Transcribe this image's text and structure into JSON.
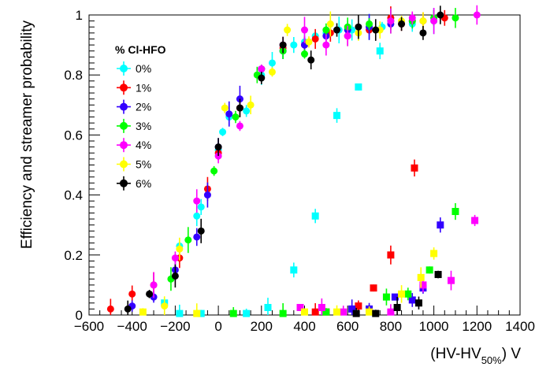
{
  "chart_data": {
    "type": "scatter",
    "xlabel": "(HV-HV",
    "xlabel_sub": "50%",
    "xlabel_unit": ") V",
    "ylabel": "Efficiency and streamer probability",
    "xlim": [
      -600,
      1400
    ],
    "ylim": [
      0,
      1.0
    ],
    "x_ticks": [
      "−600",
      "−400",
      "−200",
      "0",
      "200",
      "400",
      "600",
      "800",
      "1000",
      "1200",
      "1400"
    ],
    "y_ticks": [
      "0",
      "0.2",
      "0.4",
      "0.6",
      "0.8",
      "1"
    ],
    "legend_title": "% Cl-HFO",
    "legend_position": "top-left",
    "series": [
      {
        "name": "0%",
        "color": "#00ffff",
        "efficiency": [
          [
            -180,
            0.23
          ],
          [
            -100,
            0.33
          ],
          [
            -80,
            0.36
          ],
          [
            0,
            0.55
          ],
          [
            20,
            0.61
          ],
          [
            50,
            0.66
          ],
          [
            130,
            0.68
          ],
          [
            200,
            0.8
          ],
          [
            250,
            0.84
          ],
          [
            300,
            0.88
          ],
          [
            350,
            0.9
          ],
          [
            400,
            0.91
          ],
          [
            450,
            0.93
          ],
          [
            500,
            0.94
          ],
          [
            560,
            0.95
          ],
          [
            620,
            0.95
          ],
          [
            700,
            0.96
          ],
          [
            760,
            0.96
          ],
          [
            900,
            0.97
          ],
          [
            1000,
            0.98
          ]
        ],
        "streamer": [
          [
            -250,
            0.04
          ],
          [
            -180,
            0.005
          ],
          [
            -80,
            0.005
          ],
          [
            130,
            0.005
          ],
          [
            230,
            0.025
          ],
          [
            350,
            0.15
          ],
          [
            450,
            0.33
          ],
          [
            550,
            0.665
          ],
          [
            650,
            0.76
          ],
          [
            750,
            0.88
          ]
        ]
      },
      {
        "name": "1%",
        "color": "#ff0000",
        "efficiency": [
          [
            -500,
            0.02
          ],
          [
            -400,
            0.07
          ],
          [
            -300,
            0.1
          ],
          [
            -180,
            0.19
          ],
          [
            -50,
            0.42
          ],
          [
            0,
            0.54
          ],
          [
            100,
            0.69
          ],
          [
            200,
            0.82
          ],
          [
            300,
            0.89
          ],
          [
            400,
            0.9
          ],
          [
            450,
            0.92
          ],
          [
            520,
            0.94
          ],
          [
            600,
            0.93
          ],
          [
            700,
            0.95
          ],
          [
            800,
            0.99
          ],
          [
            850,
            0.97
          ],
          [
            950,
            0.98
          ],
          [
            1050,
            0.99
          ]
        ],
        "streamer": [
          [
            450,
            0.01
          ],
          [
            500,
            0.01
          ],
          [
            650,
            0.03
          ],
          [
            720,
            0.09
          ],
          [
            800,
            0.2
          ],
          [
            910,
            0.49
          ]
        ]
      },
      {
        "name": "2%",
        "color": "#3300ff",
        "efficiency": [
          [
            -400,
            0.03
          ],
          [
            -300,
            0.06
          ],
          [
            -200,
            0.15
          ],
          [
            -100,
            0.26
          ],
          [
            -50,
            0.4
          ],
          [
            0,
            0.56
          ],
          [
            50,
            0.67
          ],
          [
            100,
            0.72
          ],
          [
            200,
            0.82
          ],
          [
            300,
            0.88
          ],
          [
            400,
            0.9
          ],
          [
            500,
            0.93
          ],
          [
            600,
            0.95
          ],
          [
            700,
            0.96
          ],
          [
            800,
            0.97
          ],
          [
            900,
            0.98
          ],
          [
            1000,
            0.99
          ]
        ],
        "streamer": [
          [
            620,
            0.02
          ],
          [
            700,
            0.02
          ],
          [
            820,
            0.06
          ],
          [
            900,
            0.05
          ],
          [
            950,
            0.09
          ],
          [
            1030,
            0.3
          ]
        ]
      },
      {
        "name": "3%",
        "color": "#00ff00",
        "efficiency": [
          [
            -220,
            0.12
          ],
          [
            -140,
            0.25
          ],
          [
            -20,
            0.48
          ],
          [
            80,
            0.66
          ],
          [
            180,
            0.8
          ],
          [
            300,
            0.88
          ],
          [
            400,
            0.87
          ],
          [
            500,
            0.95
          ],
          [
            600,
            0.96
          ],
          [
            700,
            0.97
          ],
          [
            800,
            0.98
          ],
          [
            900,
            0.98
          ],
          [
            1000,
            0.99
          ],
          [
            1100,
            0.99
          ]
        ],
        "streamer": [
          [
            70,
            0.005
          ],
          [
            300,
            0.005
          ],
          [
            500,
            0.01
          ],
          [
            780,
            0.06
          ],
          [
            880,
            0.07
          ],
          [
            980,
            0.15
          ],
          [
            1100,
            0.345
          ]
        ]
      },
      {
        "name": "4%",
        "color": "#ff00ff",
        "efficiency": [
          [
            -300,
            0.1
          ],
          [
            -200,
            0.19
          ],
          [
            -100,
            0.38
          ],
          [
            0,
            0.53
          ],
          [
            100,
            0.63
          ],
          [
            200,
            0.82
          ],
          [
            300,
            0.9
          ],
          [
            400,
            0.95
          ],
          [
            500,
            0.9
          ],
          [
            600,
            0.93
          ],
          [
            800,
            0.98
          ],
          [
            900,
            0.99
          ],
          [
            1000,
            0.98
          ],
          [
            1200,
            1.0
          ]
        ],
        "streamer": [
          [
            380,
            0.025
          ],
          [
            480,
            0.025
          ],
          [
            580,
            0.01
          ],
          [
            800,
            0.01
          ],
          [
            950,
            0.1
          ],
          [
            1080,
            0.115
          ],
          [
            1190,
            0.315
          ]
        ]
      },
      {
        "name": "5%",
        "color": "#ffff00",
        "efficiency": [
          [
            -250,
            0.03
          ],
          [
            -180,
            0.22
          ],
          [
            30,
            0.69
          ],
          [
            150,
            0.7
          ],
          [
            250,
            0.81
          ],
          [
            320,
            0.95
          ],
          [
            420,
            0.91
          ],
          [
            520,
            0.97
          ],
          [
            650,
            0.94
          ],
          [
            750,
            0.95
          ],
          [
            850,
            0.98
          ],
          [
            950,
            0.98
          ]
        ],
        "streamer": [
          [
            -350,
            0.01
          ],
          [
            -100,
            0.005
          ],
          [
            400,
            0.01
          ],
          [
            550,
            0.01
          ],
          [
            700,
            0.01
          ],
          [
            850,
            0.07
          ],
          [
            940,
            0.125
          ],
          [
            1000,
            0.205
          ]
        ]
      },
      {
        "name": "6%",
        "color": "#000000",
        "efficiency": [
          [
            -420,
            0.02
          ],
          [
            -320,
            0.07
          ],
          [
            -200,
            0.13
          ],
          [
            -80,
            0.28
          ],
          [
            0,
            0.56
          ],
          [
            100,
            0.69
          ],
          [
            200,
            0.79
          ],
          [
            300,
            0.9
          ],
          [
            430,
            0.85
          ],
          [
            550,
            0.95
          ],
          [
            650,
            0.96
          ],
          [
            730,
            0.95
          ],
          [
            850,
            0.97
          ],
          [
            950,
            0.94
          ],
          [
            1030,
            1.0
          ]
        ],
        "streamer": [
          [
            640,
            0.005
          ],
          [
            730,
            0.005
          ],
          [
            830,
            0.025
          ],
          [
            930,
            0.04
          ],
          [
            1020,
            0.135
          ]
        ]
      }
    ]
  }
}
